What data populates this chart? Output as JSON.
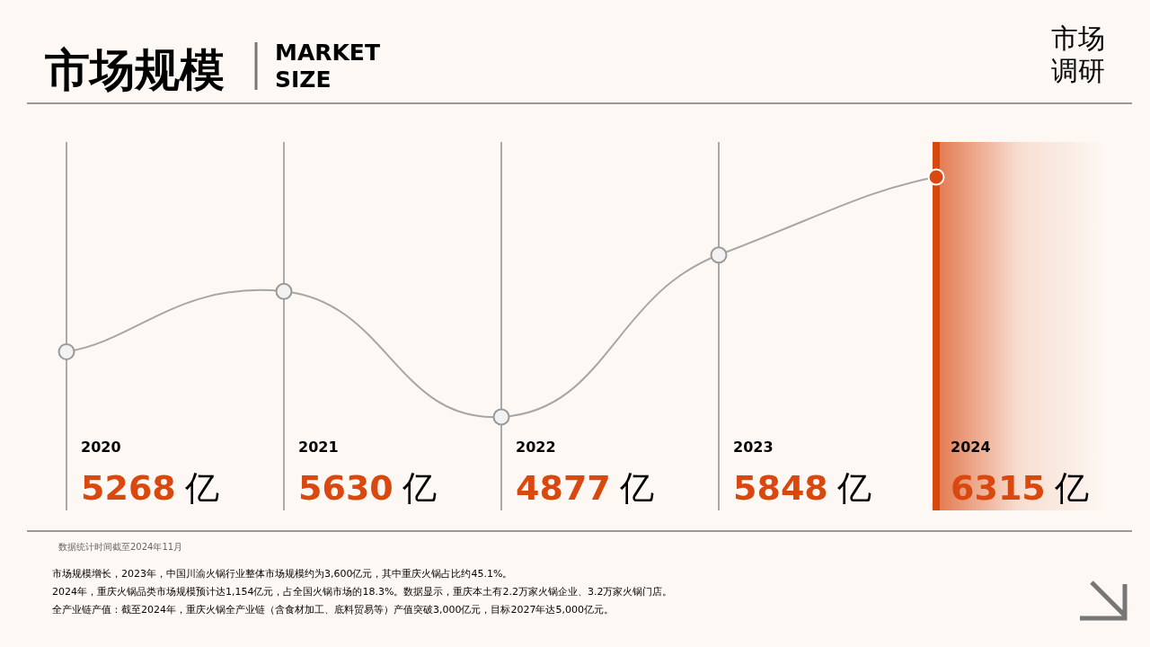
{
  "chart_data": {
    "type": "line",
    "title": "市场规模",
    "subtitle": "MARKET SIZE",
    "categories": [
      "2020",
      "2021",
      "2022",
      "2023",
      "2024"
    ],
    "series": [
      {
        "color": "#a6a6a6",
        "colors": [
          "#f2f2f2",
          "#f2f2f2",
          "#f2f2f2",
          "#f2f2f2",
          "#d9480f"
        ],
        "values": [
          5268,
          5630,
          4877,
          5848,
          6315
        ],
        "value_labels": [
          "5268 亿",
          "5630 亿",
          "4877 亿",
          "5848 亿",
          "6315 亿"
        ]
      }
    ],
    "marker": "circle",
    "line_style": "solid",
    "grid": "x",
    "bands": [
      {
        "axis": "x",
        "from": "2024",
        "to": "2024",
        "color": "#d9480f"
      }
    ],
    "ref_lines": [
      {
        "axis": "x",
        "value": "2024",
        "color": "#d9480f",
        "line_style": "solid"
      }
    ],
    "annotations": [
      "市场调研",
      "数据统计时间截至2024年11月",
      "市场规模增长，2023年，中国川渝火锅行业整体市场规模约为3,600亿元，其中重庆火锅占比约45.1%。",
      "2024年，重庆火锅品类市场规模预计达1,154亿元，占全国火锅市场的18.3%。数据显示，重庆本土有2.2万家火锅企业、3.2万家火锅门店。",
      "全产业链产值：截至2024年，重庆火锅全产业链（含食材加工、底料贸易等）产值突破3,000亿元，目标2027年达5,000亿元。"
    ]
  }
}
